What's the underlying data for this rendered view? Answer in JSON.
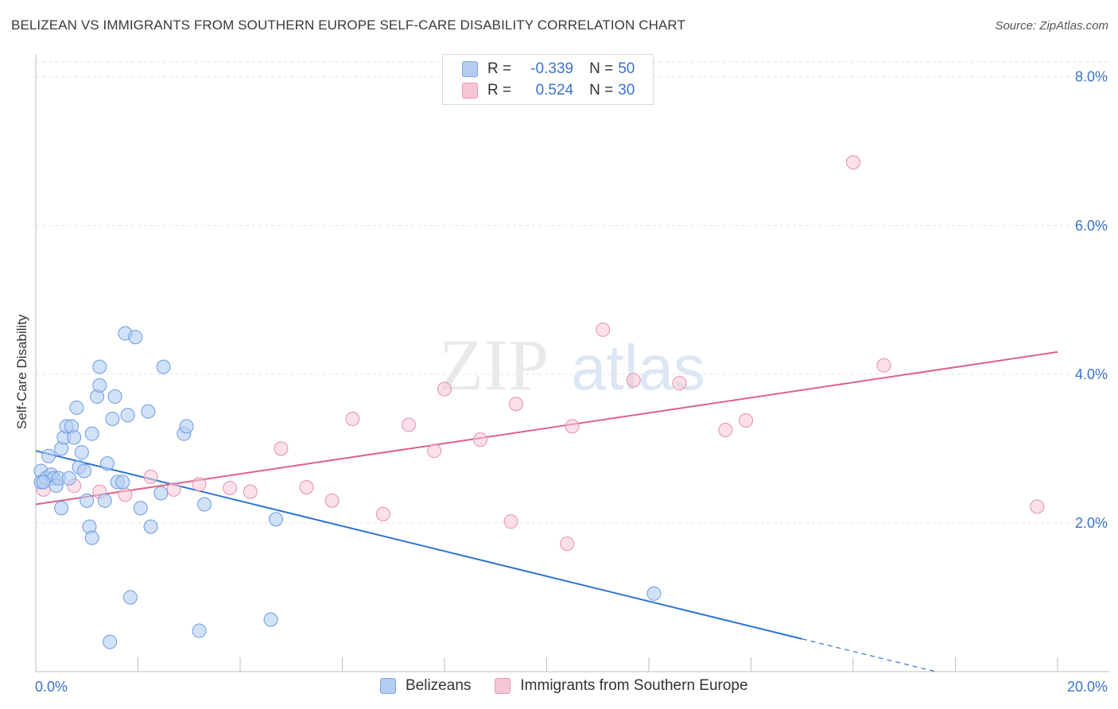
{
  "title": "BELIZEAN VS IMMIGRANTS FROM SOUTHERN EUROPE SELF-CARE DISABILITY CORRELATION CHART",
  "source": "Source: ZipAtlas.com",
  "watermark": {
    "zip": "ZIP",
    "atlas": "atlas"
  },
  "legend": {
    "r_label": "R =",
    "n_label": "N =",
    "rows": [
      {
        "r": "-0.339",
        "n": "50"
      },
      {
        "r": "0.524",
        "n": "30"
      }
    ]
  },
  "colors": {
    "blue_fill": "#b3cdf2",
    "blue_stroke": "#6a9be0",
    "blue_line": "#2f74d0",
    "pink_fill": "#f7c6d6",
    "pink_stroke": "#e58fad",
    "pink_line": "#e0608a",
    "tick_text": "#3b72c9"
  },
  "chart_data": {
    "type": "scatter",
    "title": "BELIZEAN VS IMMIGRANTS FROM SOUTHERN EUROPE SELF-CARE DISABILITY CORRELATION CHART",
    "xlabel": "",
    "ylabel": "Self-Care Disability",
    "xlim": [
      0,
      20
    ],
    "ylim": [
      0,
      8.2
    ],
    "x_tick_labels": [
      "0.0%",
      "20.0%"
    ],
    "y_ticks": [
      2,
      4,
      6,
      8
    ],
    "y_tick_labels": [
      "2.0%",
      "4.0%",
      "6.0%",
      "8.0%"
    ],
    "series": [
      {
        "name": "Belizeans",
        "r": -0.339,
        "n": 50,
        "trend": {
          "x0": 0,
          "y0": 2.97,
          "x1": 15,
          "y1": 0.44,
          "dash_to_x": 20,
          "dash_to_y": -0.4
        },
        "points": [
          [
            0.1,
            2.55
          ],
          [
            0.1,
            2.7
          ],
          [
            0.2,
            2.6
          ],
          [
            0.25,
            2.9
          ],
          [
            0.3,
            2.65
          ],
          [
            0.35,
            2.6
          ],
          [
            0.4,
            2.5
          ],
          [
            0.45,
            2.6
          ],
          [
            0.5,
            2.2
          ],
          [
            0.5,
            3.0
          ],
          [
            0.55,
            3.15
          ],
          [
            0.6,
            3.3
          ],
          [
            0.65,
            2.6
          ],
          [
            0.7,
            3.3
          ],
          [
            0.75,
            3.15
          ],
          [
            0.8,
            3.55
          ],
          [
            0.85,
            2.75
          ],
          [
            0.9,
            2.95
          ],
          [
            0.95,
            2.7
          ],
          [
            1.0,
            2.3
          ],
          [
            1.05,
            1.95
          ],
          [
            1.1,
            1.8
          ],
          [
            1.1,
            3.2
          ],
          [
            1.2,
            3.7
          ],
          [
            1.25,
            4.1
          ],
          [
            1.25,
            3.85
          ],
          [
            1.35,
            2.3
          ],
          [
            1.4,
            2.8
          ],
          [
            1.45,
            0.4
          ],
          [
            1.5,
            3.4
          ],
          [
            1.55,
            3.7
          ],
          [
            1.6,
            2.55
          ],
          [
            1.7,
            2.55
          ],
          [
            1.75,
            4.55
          ],
          [
            1.8,
            3.45
          ],
          [
            1.85,
            1.0
          ],
          [
            1.95,
            4.5
          ],
          [
            2.05,
            2.2
          ],
          [
            2.2,
            3.5
          ],
          [
            2.25,
            1.95
          ],
          [
            2.45,
            2.4
          ],
          [
            2.5,
            4.1
          ],
          [
            2.9,
            3.2
          ],
          [
            2.95,
            3.3
          ],
          [
            3.2,
            0.55
          ],
          [
            3.3,
            2.25
          ],
          [
            4.6,
            0.7
          ],
          [
            4.7,
            2.05
          ],
          [
            12.1,
            1.05
          ],
          [
            0.15,
            2.55
          ]
        ]
      },
      {
        "name": "Immigrants from Southern Europe",
        "r": 0.524,
        "n": 30,
        "trend": {
          "x0": 0,
          "y0": 2.25,
          "x1": 20,
          "y1": 4.3
        },
        "points": [
          [
            0.15,
            2.45
          ],
          [
            0.75,
            2.5
          ],
          [
            1.25,
            2.42
          ],
          [
            1.75,
            2.38
          ],
          [
            2.25,
            2.62
          ],
          [
            2.7,
            2.45
          ],
          [
            3.2,
            2.52
          ],
          [
            3.8,
            2.47
          ],
          [
            4.2,
            2.42
          ],
          [
            4.8,
            3.0
          ],
          [
            5.3,
            2.48
          ],
          [
            5.8,
            2.3
          ],
          [
            6.2,
            3.4
          ],
          [
            6.8,
            2.12
          ],
          [
            7.3,
            3.32
          ],
          [
            7.8,
            2.97
          ],
          [
            8.0,
            3.8
          ],
          [
            8.7,
            3.12
          ],
          [
            9.3,
            2.02
          ],
          [
            9.4,
            3.6
          ],
          [
            10.4,
            1.72
          ],
          [
            10.5,
            3.3
          ],
          [
            11.1,
            4.6
          ],
          [
            11.7,
            3.92
          ],
          [
            12.6,
            3.88
          ],
          [
            13.5,
            3.25
          ],
          [
            13.9,
            3.38
          ],
          [
            16.0,
            6.85
          ],
          [
            16.6,
            4.12
          ],
          [
            19.6,
            2.22
          ]
        ]
      }
    ]
  },
  "bottom_legend": [
    "Belizeans",
    "Immigrants from Southern Europe"
  ]
}
